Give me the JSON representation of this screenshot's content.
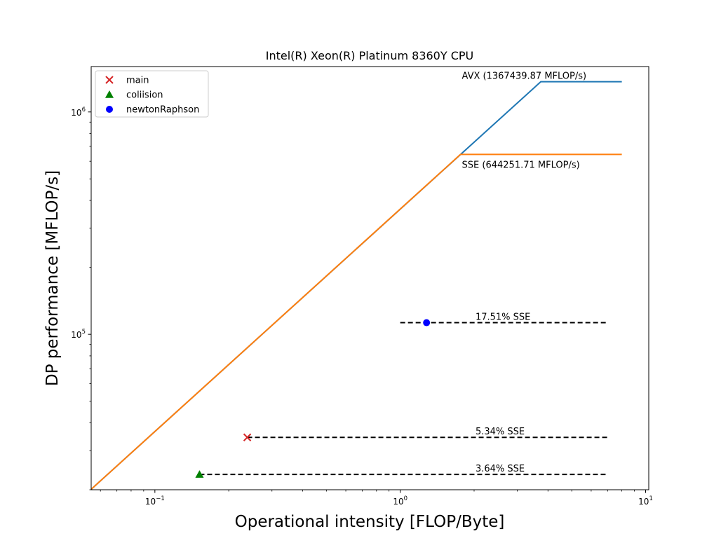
{
  "chart_data": {
    "type": "line",
    "title": "Intel(R) Xeon(R) Platinum 8360Y CPU",
    "xlabel": "Operational intensity [FLOP/Byte]",
    "ylabel": "DP performance [MFLOP/s]",
    "xscale": "log",
    "yscale": "log",
    "xlim": [
      0.055,
      10.3
    ],
    "ylim": [
      20000,
      1600000
    ],
    "grid": false,
    "legend_position": "top-left",
    "x_tick_labels": [
      {
        "value": 0.1,
        "base": "10",
        "exp": "−1"
      },
      {
        "value": 1,
        "base": "10",
        "exp": "0"
      },
      {
        "value": 10,
        "base": "10",
        "exp": "1"
      }
    ],
    "y_tick_labels": [
      {
        "value": 100000,
        "base": "10",
        "exp": "5"
      },
      {
        "value": 1000000,
        "base": "10",
        "exp": "6"
      }
    ],
    "series": [
      {
        "name": "",
        "kind": "roof",
        "color": "#1f77b4",
        "x": [
          0.055,
          3.74,
          8.0
        ],
        "y": [
          20100,
          1367439.87,
          1367439.87
        ]
      },
      {
        "name": "",
        "kind": "roof",
        "color": "#ff7f0e",
        "x": [
          0.055,
          1.76,
          8.0
        ],
        "y": [
          20100,
          644251.71,
          644251.71
        ]
      },
      {
        "name": "",
        "kind": "reference",
        "color": "#000000",
        "dash": true,
        "x": [
          1.0,
          7.0
        ],
        "y": [
          112800,
          112800
        ]
      },
      {
        "name": "",
        "kind": "reference",
        "color": "#000000",
        "dash": true,
        "x": [
          0.238,
          7.0
        ],
        "y": [
          34400,
          34400
        ]
      },
      {
        "name": "",
        "kind": "reference",
        "color": "#000000",
        "dash": true,
        "x": [
          0.152,
          7.0
        ],
        "y": [
          23450,
          23450
        ]
      },
      {
        "name": "main",
        "kind": "point",
        "marker": "x",
        "color": "#d62728",
        "x": [
          0.238
        ],
        "y": [
          34400
        ]
      },
      {
        "name": "coliision",
        "kind": "point",
        "marker": "triangle",
        "color": "#008000",
        "x": [
          0.152
        ],
        "y": [
          23450
        ]
      },
      {
        "name": "newtonRaphson",
        "kind": "point",
        "marker": "circle",
        "color": "#0000ff",
        "x": [
          1.28
        ],
        "y": [
          112800
        ]
      }
    ],
    "annotations": [
      {
        "text": "AVX (1367439.87 MFLOP/s)",
        "x": 1.76,
        "y": 1367439.87,
        "placement": "above"
      },
      {
        "text": "SSE (644251.71 MFLOP/s)",
        "x": 1.76,
        "y": 644251.71,
        "placement": "below"
      },
      {
        "text": "17.51% SSE",
        "x": 2.0,
        "y": 112800,
        "placement": "above"
      },
      {
        "text": "5.34% SSE",
        "x": 2.0,
        "y": 34400,
        "placement": "above"
      },
      {
        "text": "3.64% SSE",
        "x": 2.0,
        "y": 23450,
        "placement": "above"
      }
    ]
  }
}
